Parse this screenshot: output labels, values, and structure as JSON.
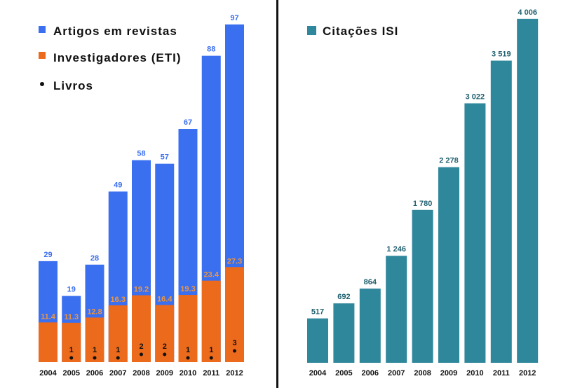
{
  "chart_data": [
    {
      "type": "bar",
      "categories": [
        "2004",
        "2005",
        "2006",
        "2007",
        "2008",
        "2009",
        "2010",
        "2011",
        "2012"
      ],
      "series": [
        {
          "name": "Artigos em revistas",
          "color": "#3a6ff0",
          "values": [
            29,
            19,
            28,
            49,
            58,
            57,
            67,
            88,
            97
          ]
        },
        {
          "name": "Investigadores (ETI)",
          "color": "#ec6a1c",
          "values": [
            11.4,
            11.3,
            12.8,
            16.3,
            19.2,
            16.4,
            19.3,
            23.4,
            27.3
          ]
        },
        {
          "name": "Livros",
          "color": "#111111",
          "values": [
            null,
            1,
            1,
            1,
            2,
            2,
            1,
            1,
            3
          ]
        }
      ],
      "legend_position": "top-left",
      "grid": false
    },
    {
      "type": "bar",
      "categories": [
        "2004",
        "2005",
        "2006",
        "2007",
        "2008",
        "2009",
        "2010",
        "2011",
        "2012"
      ],
      "series": [
        {
          "name": "Citações ISI",
          "color": "#2f879b",
          "values": [
            517,
            692,
            864,
            1246,
            1780,
            2278,
            3022,
            3519,
            4006
          ],
          "labels": [
            "517",
            "692",
            "864",
            "1 246",
            "1 780",
            "2 278",
            "3 022",
            "3 519",
            "4 006"
          ]
        }
      ],
      "legend_position": "top-left",
      "grid": false
    }
  ]
}
